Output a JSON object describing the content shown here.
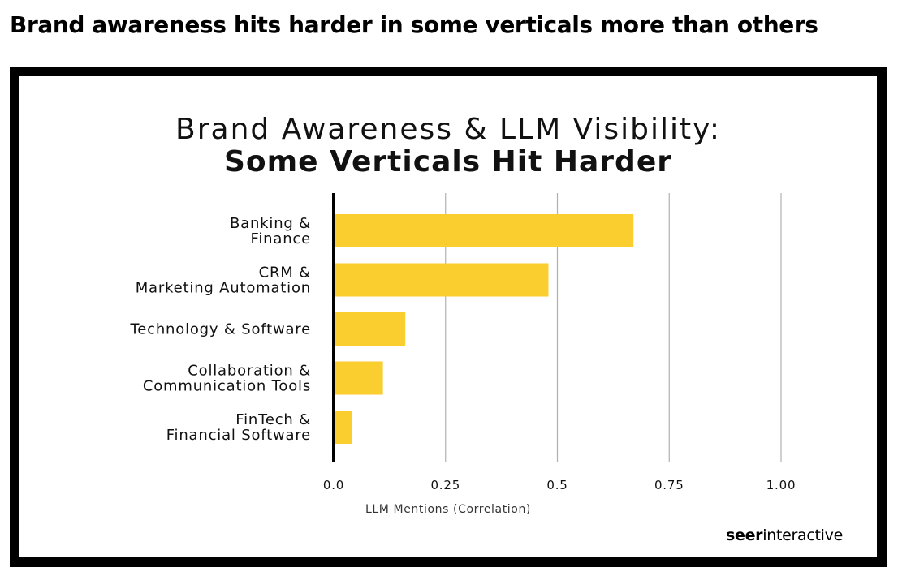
{
  "page": {
    "heading": "Brand awareness hits harder in some verticals more than others"
  },
  "brand": {
    "bold": "seer",
    "regular": "interactive"
  },
  "chart_data": {
    "type": "bar",
    "orientation": "horizontal",
    "title": "Brand Awareness & LLM Visibility:",
    "subtitle": "Some Verticals Hit Harder",
    "xlabel": "LLM Mentions (Correlation)",
    "ylabel": "",
    "categories": [
      [
        "Banking &",
        "Finance"
      ],
      [
        "CRM &",
        "Marketing Automation"
      ],
      [
        "Technology & Software"
      ],
      [
        "Collaboration &",
        "Communication Tools"
      ],
      [
        "FinTech &",
        "Financial Software"
      ]
    ],
    "values": [
      0.67,
      0.48,
      0.16,
      0.11,
      0.04
    ],
    "xlim": [
      0,
      1.0
    ],
    "ticks": [
      0,
      0.25,
      0.5,
      0.75,
      1.0
    ],
    "tick_labels": [
      "0.0",
      "0.25",
      "0.5",
      "0.75",
      "1.00"
    ],
    "grid": true,
    "bar_color": "#F9CE2E",
    "axis_color": "#000000",
    "grid_color": "#B0B0B0"
  }
}
